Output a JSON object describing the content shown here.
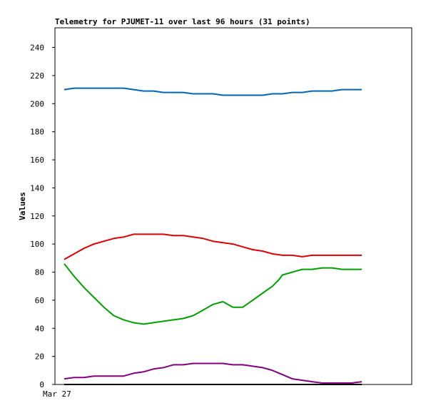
{
  "chart_data": {
    "type": "line",
    "title": "Telemetry for PJUMET-11 over last 96 hours (31 points)",
    "ylabel": "Values",
    "xlabel": "",
    "x_tick_labels": [
      "Mar 27"
    ],
    "ylim": [
      0,
      254
    ],
    "y_ticks": [
      0,
      20,
      40,
      60,
      80,
      100,
      120,
      140,
      160,
      180,
      200,
      220,
      240
    ],
    "x_range_hours": [
      0,
      96
    ],
    "grid": false,
    "legend": "none",
    "series": [
      {
        "color": "#0066b3",
        "x": [
          0,
          3.2,
          6.4,
          9.6,
          12.8,
          16,
          19.2,
          22.4,
          25.6,
          28.8,
          32,
          35.2,
          38.4,
          41.6,
          44.8,
          48,
          51.2,
          54.4,
          57.6,
          60.8,
          64,
          67.2,
          70.4,
          73.6,
          76.8,
          80,
          83.2,
          86.4,
          89.6,
          92.8,
          96
        ],
        "values": [
          210,
          211,
          211,
          211,
          211,
          211,
          211,
          210,
          209,
          209,
          208,
          208,
          208,
          207,
          207,
          207,
          206,
          206,
          206,
          206,
          206,
          207,
          207,
          208,
          208,
          209,
          209,
          209,
          210,
          210,
          210
        ]
      },
      {
        "color": "#dd0000",
        "x": [
          0,
          3.2,
          6.4,
          9.6,
          12.8,
          16,
          19.2,
          22.4,
          25.6,
          28.8,
          32,
          35.2,
          38.4,
          41.6,
          44.8,
          48,
          51.2,
          54.4,
          57.6,
          60.8,
          64,
          67.2,
          70.4,
          73.6,
          76.8,
          80,
          83.2,
          86.4,
          89.6,
          92.8,
          96
        ],
        "values": [
          89,
          93,
          97,
          100,
          102,
          104,
          105,
          107,
          107,
          107,
          107,
          106,
          106,
          105,
          104,
          102,
          101,
          100,
          98,
          96,
          95,
          93,
          92,
          92,
          91,
          92,
          92,
          92,
          92,
          92,
          92
        ]
      },
      {
        "color": "#00a000",
        "x": [
          0,
          3.2,
          6.4,
          9.6,
          12.8,
          16,
          19.2,
          22.4,
          25.6,
          28.8,
          32,
          35.2,
          38.4,
          41.6,
          44.8,
          48,
          51.2,
          54.4,
          57.6,
          60.8,
          64,
          67.2,
          69.4,
          70.4,
          73.6,
          76.8,
          80,
          83.2,
          86.4,
          89.6,
          96
        ],
        "values": [
          86,
          77,
          69,
          62,
          55,
          49,
          46,
          44,
          43,
          44,
          45,
          46,
          47,
          49,
          53,
          57,
          59,
          55,
          55,
          60,
          65,
          70,
          75,
          78,
          80,
          82,
          82,
          83,
          83,
          82,
          82
        ]
      },
      {
        "color": "#800080",
        "x": [
          0,
          3.2,
          6.4,
          9.6,
          12.8,
          16,
          19.2,
          22.4,
          25.6,
          28.8,
          32,
          35.2,
          38.4,
          41.6,
          44.8,
          48,
          51.2,
          54.4,
          57.6,
          60.8,
          64,
          67.2,
          70.4,
          73.6,
          76.8,
          80,
          83.2,
          86.4,
          89.6,
          92.8,
          96
        ],
        "values": [
          4,
          5,
          5,
          6,
          6,
          6,
          6,
          8,
          9,
          11,
          12,
          14,
          14,
          15,
          15,
          15,
          15,
          14,
          14,
          13,
          12,
          10,
          7,
          4,
          3,
          2,
          1,
          1,
          1,
          1,
          2
        ]
      },
      {
        "color": "#000000",
        "x": [
          0,
          96
        ],
        "values": [
          0,
          0
        ]
      }
    ]
  }
}
